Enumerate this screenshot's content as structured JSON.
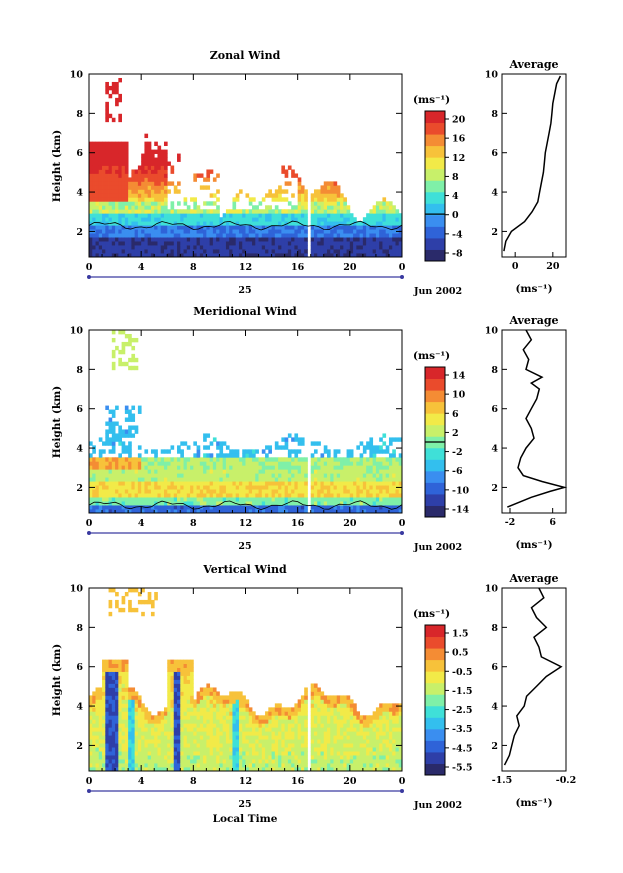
{
  "colors": {
    "frame": "#000000",
    "colormap": [
      "#2a2a6a",
      "#2e3fa8",
      "#2f63d8",
      "#3a8ef0",
      "#33bfee",
      "#3fe0d8",
      "#7ff0a8",
      "#c8f06a",
      "#f2ea48",
      "#f7c23a",
      "#f48c34",
      "#ea4b2c",
      "#d8262a"
    ]
  },
  "shared": {
    "date_label": "Jun 2002",
    "day_label": "25",
    "xlabel": "Local Time",
    "x_ticks": [
      "0",
      "4",
      "8",
      "12",
      "16",
      "20",
      "0"
    ],
    "xlim": [
      0,
      24
    ],
    "height_ticks": [
      "2",
      "4",
      "6",
      "8",
      "10"
    ],
    "ylim": [
      0.7,
      10
    ],
    "ylabel": "Height (km)",
    "unit_label": "(ms⁻¹)",
    "avg_unit_label": "(ms⁻¹)",
    "avg_title": "Average"
  },
  "chart_data": [
    {
      "type": "heatmap",
      "title": "Zonal Wind",
      "xlabel": "",
      "ylabel": "Height (km)",
      "x_range_hours": [
        0,
        24
      ],
      "y_range_km": [
        0.7,
        10
      ],
      "colorbar": {
        "unit": "(ms⁻¹)",
        "range": [
          -10,
          22
        ],
        "ticks": [
          "20",
          "16",
          "12",
          "8",
          "4",
          "0",
          "-4",
          "-8"
        ],
        "contour_level": 0
      },
      "average_profile": {
        "title": "Average",
        "xlabel": "(ms⁻¹)",
        "x_ticks": [
          "0",
          "20"
        ],
        "xlim": [
          -7,
          27
        ],
        "height_km": [
          1.0,
          1.5,
          2.0,
          2.5,
          3.0,
          3.5,
          4.0,
          4.5,
          5.0,
          5.5,
          6.0,
          6.5,
          7.0,
          7.5,
          8.0,
          8.5,
          9.0,
          9.5,
          9.9
        ],
        "values": [
          -6,
          -5,
          -2,
          5,
          9,
          12,
          13,
          14,
          15,
          15.5,
          16,
          17,
          18,
          19,
          19.5,
          20,
          21,
          22,
          24
        ]
      }
    },
    {
      "type": "heatmap",
      "title": "Meridional Wind",
      "xlabel": "",
      "ylabel": "Height (km)",
      "x_range_hours": [
        0,
        24
      ],
      "y_range_km": [
        0.7,
        10
      ],
      "colorbar": {
        "unit": "(ms⁻¹)",
        "range": [
          -16,
          16
        ],
        "ticks": [
          "14",
          "10",
          "6",
          "2",
          "-2",
          "-6",
          "-10",
          "-14"
        ],
        "contour_level": 0
      },
      "average_profile": {
        "title": "Average",
        "xlabel": "(ms⁻¹)",
        "x_ticks": [
          "-2",
          "6"
        ],
        "xlim": [
          -3.5,
          8.5
        ],
        "height_km": [
          1.0,
          1.5,
          1.8,
          2.0,
          2.3,
          2.6,
          3.0,
          3.5,
          4.0,
          4.5,
          5.0,
          5.5,
          6.0,
          6.5,
          7.0,
          7.3,
          7.6,
          8.0,
          8.5,
          9.0,
          9.5,
          10.0
        ],
        "values": [
          -2.5,
          2,
          5.5,
          8.2,
          4,
          0.5,
          -0.5,
          0,
          1,
          2.5,
          2,
          1,
          2,
          3,
          3.5,
          2,
          4,
          1,
          1.5,
          0.5,
          2,
          1
        ]
      }
    },
    {
      "type": "heatmap",
      "title": "Vertical Wind",
      "xlabel": "Local Time",
      "ylabel": "Height (km)",
      "x_range_hours": [
        0,
        24
      ],
      "y_range_km": [
        0.7,
        10
      ],
      "colorbar": {
        "unit": "(ms⁻¹)",
        "range": [
          -6.5,
          2.0
        ],
        "ticks": [
          "1.5",
          "0.5",
          "-0.5",
          "-1.5",
          "-2.5",
          "-3.5",
          "-4.5",
          "-5.5"
        ],
        "contour_level": null
      },
      "average_profile": {
        "title": "Average",
        "xlabel": "(ms⁻¹)",
        "x_ticks": [
          "-1.5",
          "-0.2"
        ],
        "xlim": [
          -1.5,
          -0.2
        ],
        "height_km": [
          1.0,
          1.5,
          2.0,
          2.5,
          3.0,
          3.5,
          4.0,
          4.5,
          5.0,
          5.5,
          6.0,
          6.5,
          7.0,
          7.5,
          8.0,
          8.5,
          9.0,
          9.5,
          10.0
        ],
        "values": [
          -1.45,
          -1.35,
          -1.3,
          -1.25,
          -1.15,
          -1.2,
          -1.05,
          -1.0,
          -0.8,
          -0.6,
          -0.3,
          -0.7,
          -0.75,
          -0.85,
          -0.6,
          -0.8,
          -0.9,
          -0.65,
          -0.75
        ]
      }
    }
  ]
}
